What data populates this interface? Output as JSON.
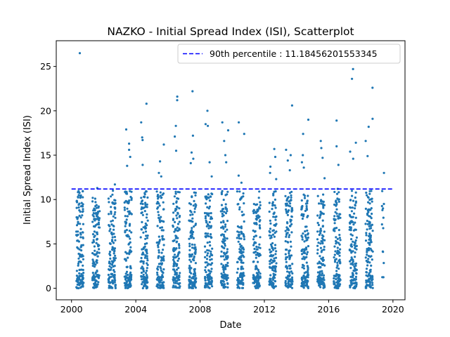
{
  "chart_data": {
    "type": "scatter",
    "title": "NAZKO - Initial Spread Index (ISI), Scatterplot",
    "xlabel": "Date",
    "ylabel": "Initial Spread Index (ISI)",
    "x_unit": "year",
    "xlim": [
      1999.05,
      2020.75
    ],
    "ylim": [
      -1.3,
      27.9
    ],
    "x_ticks": [
      2000,
      2004,
      2008,
      2012,
      2016,
      2020
    ],
    "y_ticks": [
      0,
      5,
      10,
      15,
      20,
      25
    ],
    "grid": false,
    "legend_position": "top-right",
    "point_color": "#1f77b4",
    "threshold": {
      "label": "90th percentile : 11.18456201553345",
      "value": 11.18456201553345,
      "color": "#0000ff",
      "style": "dashed"
    },
    "seasons": [
      {
        "season": 2000,
        "x_range": [
          2000.3,
          2000.75
        ],
        "max": 26.5,
        "highs": [
          26.5,
          10.3,
          9.8,
          8.0,
          7.1
        ]
      },
      {
        "season": 2001,
        "x_range": [
          2001.3,
          2001.75
        ],
        "max": 11.3,
        "highs": [
          11.3,
          8.1,
          7.9,
          7.2
        ]
      },
      {
        "season": 2002,
        "x_range": [
          2002.3,
          2002.75
        ],
        "max": 11.7,
        "highs": [
          11.7,
          11.0,
          9.9,
          9.5
        ]
      },
      {
        "season": 2003,
        "x_range": [
          2003.3,
          2003.75
        ],
        "max": 17.9,
        "highs": [
          17.9,
          16.3,
          15.6,
          14.8,
          13.8
        ]
      },
      {
        "season": 2004,
        "x_range": [
          2004.3,
          2004.75
        ],
        "max": 20.8,
        "highs": [
          20.8,
          18.7,
          17.0,
          16.7,
          13.9
        ]
      },
      {
        "season": 2005,
        "x_range": [
          2005.3,
          2005.75
        ],
        "max": 16.2,
        "highs": [
          16.2,
          14.3,
          13.0,
          12.6
        ]
      },
      {
        "season": 2006,
        "x_range": [
          2006.3,
          2006.75
        ],
        "max": 21.6,
        "highs": [
          21.6,
          21.2,
          18.3,
          17.1,
          15.5
        ]
      },
      {
        "season": 2007,
        "x_range": [
          2007.3,
          2007.75
        ],
        "max": 22.2,
        "highs": [
          22.2,
          17.2,
          15.3,
          14.6,
          14.1
        ]
      },
      {
        "season": 2008,
        "x_range": [
          2008.3,
          2008.75
        ],
        "max": 20.0,
        "highs": [
          20.0,
          18.5,
          18.3,
          14.2,
          12.6
        ]
      },
      {
        "season": 2009,
        "x_range": [
          2009.3,
          2009.75
        ],
        "max": 18.7,
        "highs": [
          18.7,
          17.8,
          16.6,
          15.0,
          14.2
        ]
      },
      {
        "season": 2010,
        "x_range": [
          2010.3,
          2010.75
        ],
        "max": 18.7,
        "highs": [
          18.7,
          17.4,
          12.7,
          11.9
        ]
      },
      {
        "season": 2011,
        "x_range": [
          2011.3,
          2011.75
        ],
        "max": 10.9,
        "highs": [
          10.9,
          10.2,
          8.6,
          8.2
        ]
      },
      {
        "season": 2012,
        "x_range": [
          2012.3,
          2012.75
        ],
        "max": 15.7,
        "highs": [
          15.7,
          14.8,
          13.7,
          13.0,
          12.3
        ]
      },
      {
        "season": 2013,
        "x_range": [
          2013.3,
          2013.75
        ],
        "max": 20.6,
        "highs": [
          20.6,
          15.6,
          15.0,
          14.4,
          13.3
        ]
      },
      {
        "season": 2014,
        "x_range": [
          2014.3,
          2014.75
        ],
        "max": 19.0,
        "highs": [
          19.0,
          17.4,
          15.0,
          14.2,
          13.6
        ]
      },
      {
        "season": 2015,
        "x_range": [
          2015.3,
          2015.75
        ],
        "max": 16.6,
        "highs": [
          16.6,
          15.8,
          14.7,
          12.4
        ]
      },
      {
        "season": 2016,
        "x_range": [
          2016.3,
          2016.75
        ],
        "max": 18.9,
        "highs": [
          18.9,
          16.0,
          13.9,
          11.2
        ]
      },
      {
        "season": 2017,
        "x_range": [
          2017.3,
          2017.75
        ],
        "max": 24.7,
        "highs": [
          24.7,
          23.6,
          16.4,
          15.4,
          14.6
        ]
      },
      {
        "season": 2018,
        "x_range": [
          2018.3,
          2018.75
        ],
        "max": 22.6,
        "highs": [
          22.6,
          19.1,
          18.2,
          16.6,
          14.9
        ]
      },
      {
        "season": 2019,
        "x_range": [
          2019.3,
          2019.45
        ],
        "max": 13.0,
        "highs": [
          13.0,
          9.5,
          9.0,
          7.2
        ]
      }
    ]
  }
}
